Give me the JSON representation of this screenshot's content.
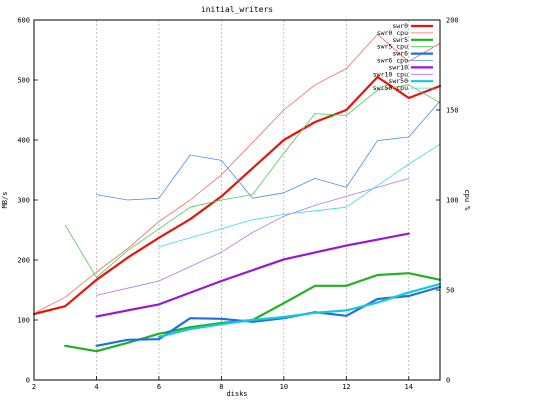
{
  "chart_data": {
    "type": "line",
    "title": "initial_writers",
    "xlabel": "disks",
    "ylabel": "MB/s",
    "y2label": "cpu %",
    "xlim": [
      2,
      15
    ],
    "ylim": [
      0,
      600
    ],
    "y2lim": [
      0,
      200
    ],
    "xticks": [
      "2",
      "4",
      "6",
      "8",
      "10",
      "12",
      "14"
    ],
    "yticks": [
      "0",
      "100",
      "200",
      "300",
      "400",
      "500",
      "600"
    ],
    "y2ticks": [
      "0",
      "50",
      "100",
      "150",
      "200"
    ],
    "grid": "vertical dashed",
    "legend_position": "top-right",
    "series": [
      {
        "name": "swr0",
        "axis": "y",
        "color": "#e8140a",
        "width": 2.2,
        "x": [
          2,
          3,
          4,
          5,
          6,
          7,
          8,
          9,
          10,
          11,
          12,
          13,
          14,
          15
        ],
        "y": [
          110,
          123,
          167,
          204,
          237,
          268,
          306,
          353,
          400,
          430,
          450,
          505,
          470,
          490
        ]
      },
      {
        "name": "swr0 cpu",
        "axis": "y2",
        "color": "#f06a60",
        "width": 0.8,
        "x": [
          2,
          3,
          4,
          5,
          6,
          7,
          8,
          9,
          10,
          11,
          12,
          13,
          14,
          15
        ],
        "y": [
          37,
          46,
          60,
          73,
          88,
          100,
          114,
          132,
          150,
          164,
          173,
          192,
          177,
          187
        ]
      },
      {
        "name": "swr5",
        "axis": "y",
        "color": "#1fb21f",
        "width": 2.2,
        "x": [
          3,
          4,
          5,
          6,
          7,
          8,
          9,
          10,
          11,
          12,
          13,
          14,
          15
        ],
        "y": [
          57,
          48,
          62,
          77,
          88,
          95,
          100,
          128,
          157,
          157,
          175,
          178,
          167
        ]
      },
      {
        "name": "swr5 cpu",
        "axis": "y2",
        "color": "#4ec84e",
        "width": 0.8,
        "x": [
          3,
          4,
          5,
          6,
          7,
          8,
          9,
          10,
          11,
          12,
          13,
          14,
          15
        ],
        "y": [
          86,
          57,
          72,
          84,
          96,
          100,
          103,
          126,
          148,
          147,
          161,
          164,
          154
        ]
      },
      {
        "name": "swr6",
        "axis": "y",
        "color": "#1f6fe0",
        "width": 2.2,
        "x": [
          4,
          5,
          6,
          7,
          8,
          9,
          10,
          11,
          12,
          13,
          14,
          15
        ],
        "y": [
          57,
          67,
          68,
          103,
          102,
          97,
          103,
          113,
          107,
          135,
          140,
          155
        ]
      },
      {
        "name": "swr6 cpu",
        "axis": "y2",
        "color": "#4c8fe6",
        "width": 0.8,
        "x": [
          4,
          5,
          6,
          7,
          8,
          9,
          10,
          11,
          12,
          13,
          14,
          15
        ],
        "y": [
          103,
          100,
          101,
          125,
          122,
          101,
          104,
          112,
          107,
          133,
          135,
          155
        ]
      },
      {
        "name": "swr10",
        "axis": "y",
        "color": "#9a16d6",
        "width": 2.2,
        "x": [
          4,
          6,
          8,
          10,
          12,
          14
        ],
        "y": [
          106,
          126,
          165,
          201,
          224,
          244
        ]
      },
      {
        "name": "swr10 cpu",
        "axis": "y2",
        "color": "#b474e8",
        "width": 0.8,
        "x": [
          4,
          5,
          6,
          7,
          8,
          9,
          10,
          11,
          12,
          13,
          14
        ],
        "y": [
          47,
          51,
          55,
          63,
          71,
          82,
          91,
          97,
          102,
          107,
          112
        ]
      },
      {
        "name": "swr50",
        "axis": "y",
        "color": "#12c8dc",
        "width": 2.2,
        "x": [
          6,
          7,
          8,
          9,
          10,
          11,
          12,
          13,
          14,
          15
        ],
        "y": [
          72,
          85,
          93,
          100,
          105,
          112,
          116,
          129,
          146,
          160
        ]
      },
      {
        "name": "swr50 cpu",
        "axis": "y2",
        "color": "#3ed8e8",
        "width": 0.8,
        "x": [
          6,
          7,
          8,
          9,
          10,
          11,
          12,
          13,
          14,
          15
        ],
        "y": [
          74,
          79,
          84,
          89,
          92,
          94,
          96,
          108,
          120,
          131
        ]
      }
    ]
  }
}
